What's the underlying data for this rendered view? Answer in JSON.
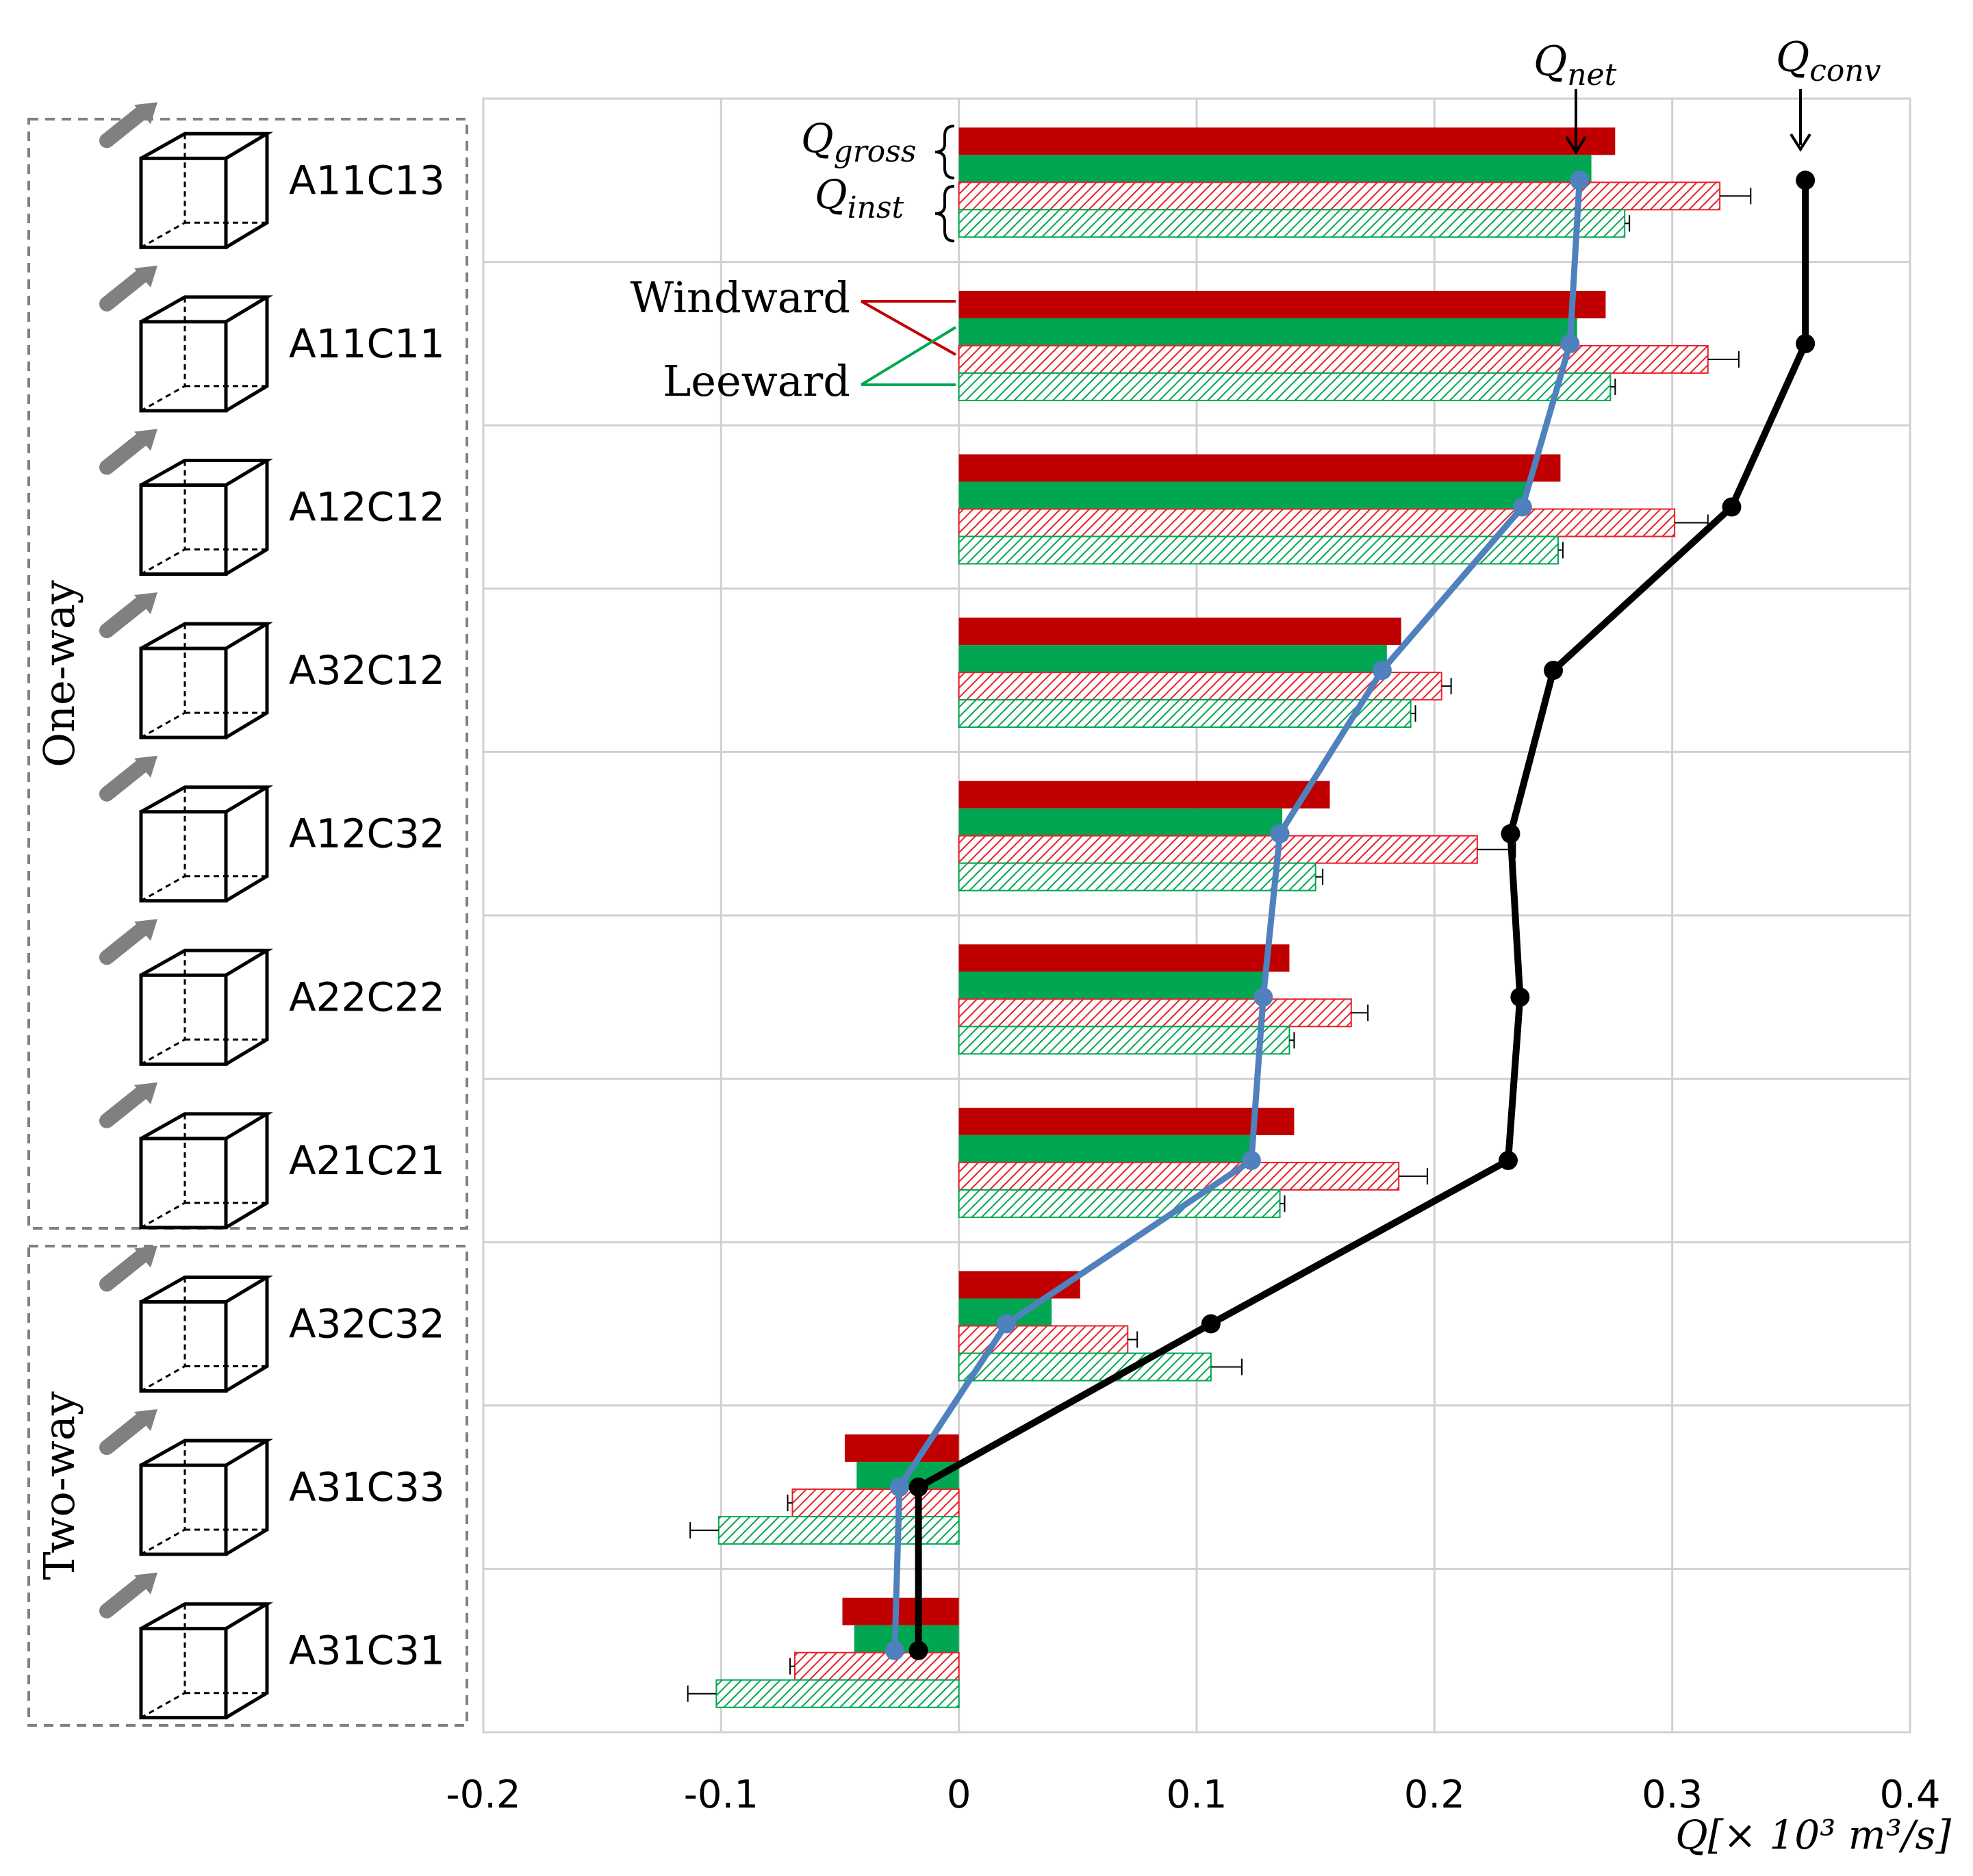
{
  "chart_data": {
    "type": "bar",
    "orientation": "horizontal",
    "categories": [
      "A11C13",
      "A11C11",
      "A12C12",
      "A32C12",
      "A12C32",
      "A22C22",
      "A21C21",
      "A32C32",
      "A31C33",
      "A31C31"
    ],
    "groups": [
      {
        "label": "One-way",
        "categories": [
          "A11C13",
          "A11C11",
          "A12C12",
          "A32C12",
          "A12C32",
          "A22C22",
          "A21C21"
        ]
      },
      {
        "label": "Two-way",
        "categories": [
          "A32C32",
          "A31C33",
          "A31C31"
        ]
      }
    ],
    "series": [
      {
        "kind": "bar",
        "group": "gross",
        "side": "windward",
        "color": "#c00000",
        "fill": "solid",
        "values": [
          0.276,
          0.272,
          0.253,
          0.186,
          0.156,
          0.139,
          0.141,
          0.051,
          -0.048,
          -0.049
        ]
      },
      {
        "kind": "bar",
        "group": "gross",
        "side": "leeward",
        "color": "#00a651",
        "fill": "solid",
        "values": [
          0.266,
          0.26,
          0.239,
          0.18,
          0.136,
          0.129,
          0.124,
          0.039,
          -0.043,
          -0.044
        ]
      },
      {
        "kind": "bar",
        "group": "inst",
        "side": "windward",
        "color": "#e8202a",
        "fill": "hatched",
        "values": [
          0.32,
          0.315,
          0.301,
          0.203,
          0.218,
          0.165,
          0.185,
          0.071,
          -0.07,
          -0.069
        ],
        "error": [
          0.013,
          0.013,
          0.014,
          0.004,
          0.016,
          0.007,
          0.012,
          0.004,
          0.002,
          0.002
        ]
      },
      {
        "kind": "bar",
        "group": "inst",
        "side": "leeward",
        "color": "#00a651",
        "fill": "hatched",
        "values": [
          0.28,
          0.274,
          0.252,
          0.19,
          0.15,
          0.139,
          0.135,
          0.106,
          -0.101,
          -0.102
        ],
        "error": [
          0.002,
          0.002,
          0.002,
          0.002,
          0.003,
          0.002,
          0.002,
          0.013,
          0.012,
          0.012
        ]
      },
      {
        "kind": "line",
        "name": "Q_net",
        "color": "#4f81bd",
        "values": [
          0.261,
          0.257,
          0.237,
          0.178,
          0.135,
          0.128,
          0.123,
          0.02,
          -0.025,
          -0.027
        ]
      },
      {
        "kind": "line",
        "name": "Q_conv",
        "color": "#000000",
        "values": [
          0.356,
          0.356,
          0.325,
          0.25,
          0.232,
          0.236,
          0.231,
          0.106,
          -0.017,
          -0.017
        ]
      }
    ],
    "xlim": [
      -0.2,
      0.4
    ],
    "xticks": [
      "-0.2",
      "-0.1",
      "0",
      "0.1",
      "0.2",
      "0.3",
      "0.4"
    ],
    "xticks_values": [
      -0.2,
      -0.1,
      0,
      0.1,
      0.2,
      0.3,
      0.4
    ],
    "xlabel": "Q[× 10³ m³/s]",
    "grid": true,
    "annotations": {
      "q_net": "Q",
      "q_net_sub": "net",
      "q_conv": "Q",
      "q_conv_sub": "conv",
      "q_gross": "Q",
      "q_gross_sub": "gross",
      "q_inst": "Q",
      "q_inst_sub": "inst",
      "windward": "Windward",
      "leeward": "Leeward"
    }
  }
}
